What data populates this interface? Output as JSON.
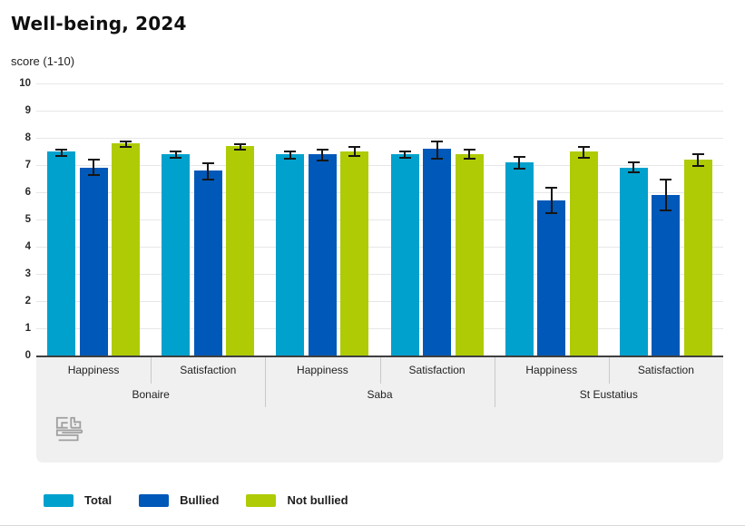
{
  "header": {
    "title": "Well-being, 2024",
    "subtitle": "score (1-10)"
  },
  "chart_data": {
    "type": "bar",
    "title": "Well-being, 2024",
    "ylabel": "score (1-10)",
    "ylim": [
      0,
      10
    ],
    "yticks": [
      0,
      1,
      2,
      3,
      4,
      5,
      6,
      7,
      8,
      9,
      10
    ],
    "grid": true,
    "error_bars": true,
    "legend_position": "bottom",
    "regions": [
      "Bonaire",
      "Saba",
      "St Eustatius"
    ],
    "subcategories": [
      "Happiness",
      "Satisfaction"
    ],
    "column_order": [
      "Bonaire Happiness",
      "Bonaire Satisfaction",
      "Saba Happiness",
      "Saba Satisfaction",
      "St Eustatius Happiness",
      "St Eustatius Satisfaction"
    ],
    "series": [
      {
        "name": "Total",
        "color": "#00a1cd",
        "values": [
          7.5,
          7.4,
          7.4,
          7.4,
          7.1,
          6.9
        ],
        "error_low": [
          7.3,
          7.25,
          7.2,
          7.25,
          6.85,
          6.7
        ],
        "error_high": [
          7.6,
          7.55,
          7.55,
          7.55,
          7.35,
          7.15
        ]
      },
      {
        "name": "Bullied",
        "color": "#0058b8",
        "values": [
          6.9,
          6.8,
          7.4,
          7.6,
          5.7,
          5.9
        ],
        "error_low": [
          6.6,
          6.45,
          7.15,
          7.2,
          5.2,
          5.3
        ],
        "error_high": [
          7.25,
          7.1,
          7.6,
          7.9,
          6.2,
          6.5
        ]
      },
      {
        "name": "Not bullied",
        "color": "#afcb05",
        "values": [
          7.8,
          7.7,
          7.5,
          7.4,
          7.5,
          7.2
        ],
        "error_low": [
          7.65,
          7.55,
          7.3,
          7.2,
          7.25,
          6.95
        ],
        "error_high": [
          7.9,
          7.8,
          7.7,
          7.6,
          7.7,
          7.45
        ]
      }
    ]
  },
  "legend": {
    "items": [
      {
        "label": "Total",
        "color": "#00a1cd"
      },
      {
        "label": "Bullied",
        "color": "#0058b8"
      },
      {
        "label": "Not bullied",
        "color": "#afcb05"
      }
    ]
  },
  "icons": {
    "menu": "hamburger-menu-icon",
    "logo": "cbs-logo"
  },
  "colors": {
    "grid": "#e7e7e7",
    "axis_line": "#3f3f3f",
    "label_area_bg": "#f0f0f0",
    "cell_border": "#c9c9c9",
    "text": "#222222",
    "error_bar": "#161616",
    "page_border": "#d9d9d9"
  }
}
